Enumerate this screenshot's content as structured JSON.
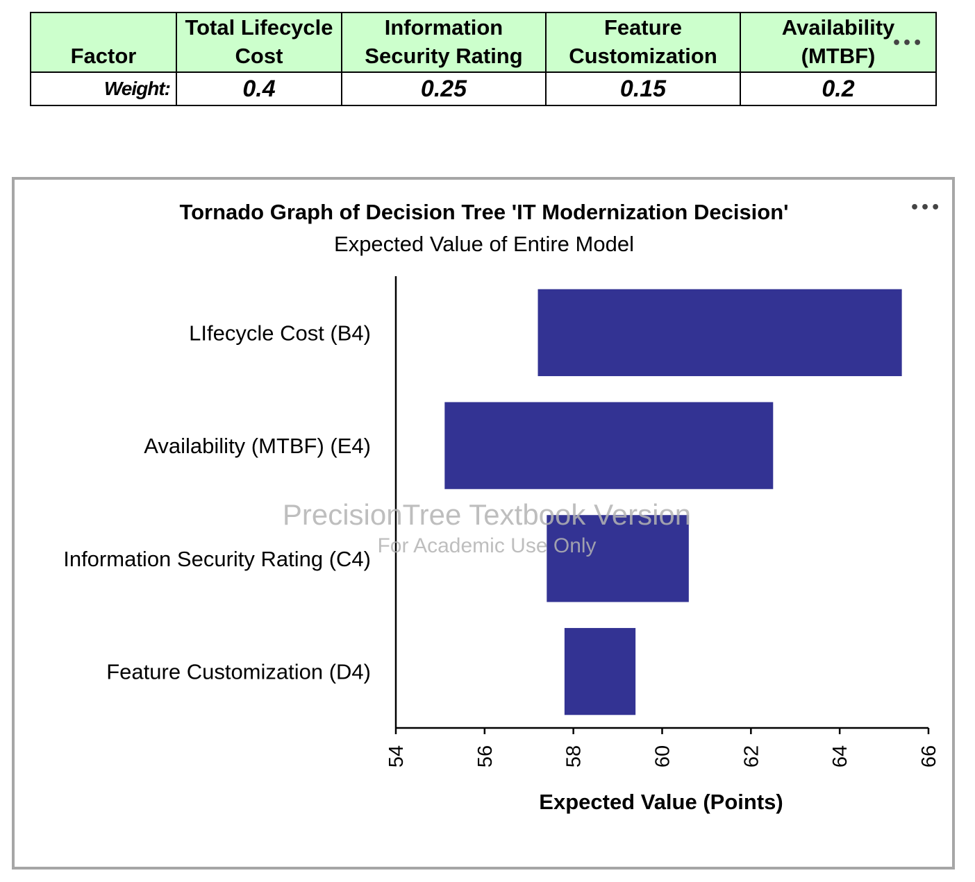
{
  "weights_table": {
    "headers": [
      "Factor",
      "Total Lifecycle\nCost",
      "Information\nSecurity Rating",
      "Feature\nCustomization",
      "Availability\n(MTBF)"
    ],
    "row_label": "Weight:",
    "values": [
      "0.4",
      "0.25",
      "0.15",
      "0.2"
    ]
  },
  "chart_data": {
    "type": "bar",
    "orientation": "horizontal",
    "title": "Tornado Graph of Decision Tree 'IT Modernization Decision'",
    "subtitle": "Expected Value of Entire Model",
    "xlabel": "Expected Value (Points)",
    "ylabel": "",
    "xlim": [
      54,
      66
    ],
    "xticks": [
      54,
      56,
      58,
      60,
      62,
      64,
      66
    ],
    "categories": [
      "LIfecycle Cost (B4)",
      "Availability (MTBF) (E4)",
      "Information Security Rating (C4)",
      "Feature Customization (D4)"
    ],
    "ranges": [
      [
        57.2,
        65.4
      ],
      [
        55.1,
        62.5
      ],
      [
        57.4,
        60.6
      ],
      [
        57.8,
        59.4
      ]
    ],
    "bar_color": "#333393",
    "grid": false,
    "watermark": [
      "PrecisionTree Textbook Version",
      "For Academic Use Only"
    ]
  }
}
